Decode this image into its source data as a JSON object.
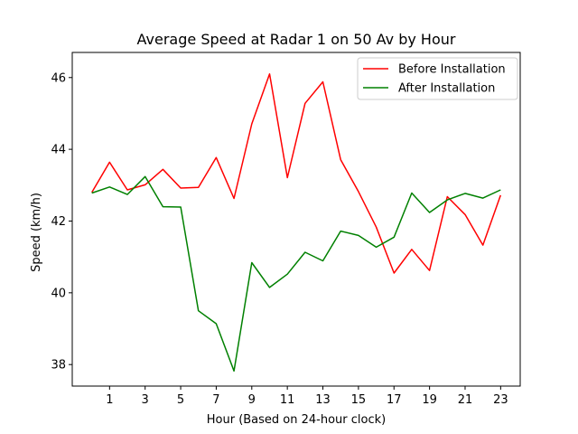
{
  "chart_data": {
    "type": "line",
    "title": "Average Speed at Radar 1 on 50 Av by Hour",
    "xlabel": "Hour (Based on 24-hour clock)",
    "ylabel": "Speed (km/h)",
    "x": [
      0,
      1,
      2,
      3,
      4,
      5,
      6,
      7,
      8,
      9,
      10,
      11,
      12,
      13,
      14,
      15,
      16,
      17,
      18,
      19,
      20,
      21,
      22,
      23
    ],
    "xticks": [
      1,
      3,
      5,
      7,
      9,
      11,
      13,
      15,
      17,
      19,
      21,
      23
    ],
    "yticks": [
      38,
      40,
      42,
      44,
      46
    ],
    "xlim": [
      -1.1,
      24.1
    ],
    "ylim": [
      37.4,
      46.7
    ],
    "grid": false,
    "legend_position": "top-right",
    "series": [
      {
        "name": "Before Installation",
        "color": "#ff0000",
        "values": [
          42.8,
          43.64,
          42.87,
          43.01,
          43.44,
          42.92,
          42.94,
          43.77,
          42.63,
          44.71,
          46.1,
          43.21,
          45.28,
          45.88,
          43.71,
          42.82,
          41.83,
          40.55,
          41.21,
          40.62,
          42.68,
          42.18,
          41.33,
          42.72
        ]
      },
      {
        "name": "After Installation",
        "color": "#008000",
        "values": [
          42.78,
          42.95,
          42.74,
          43.24,
          42.4,
          42.39,
          39.5,
          39.14,
          37.82,
          40.84,
          40.15,
          40.52,
          41.13,
          40.89,
          41.72,
          41.6,
          41.27,
          41.55,
          42.78,
          42.24,
          42.59,
          42.77,
          42.64,
          42.87
        ]
      }
    ]
  }
}
